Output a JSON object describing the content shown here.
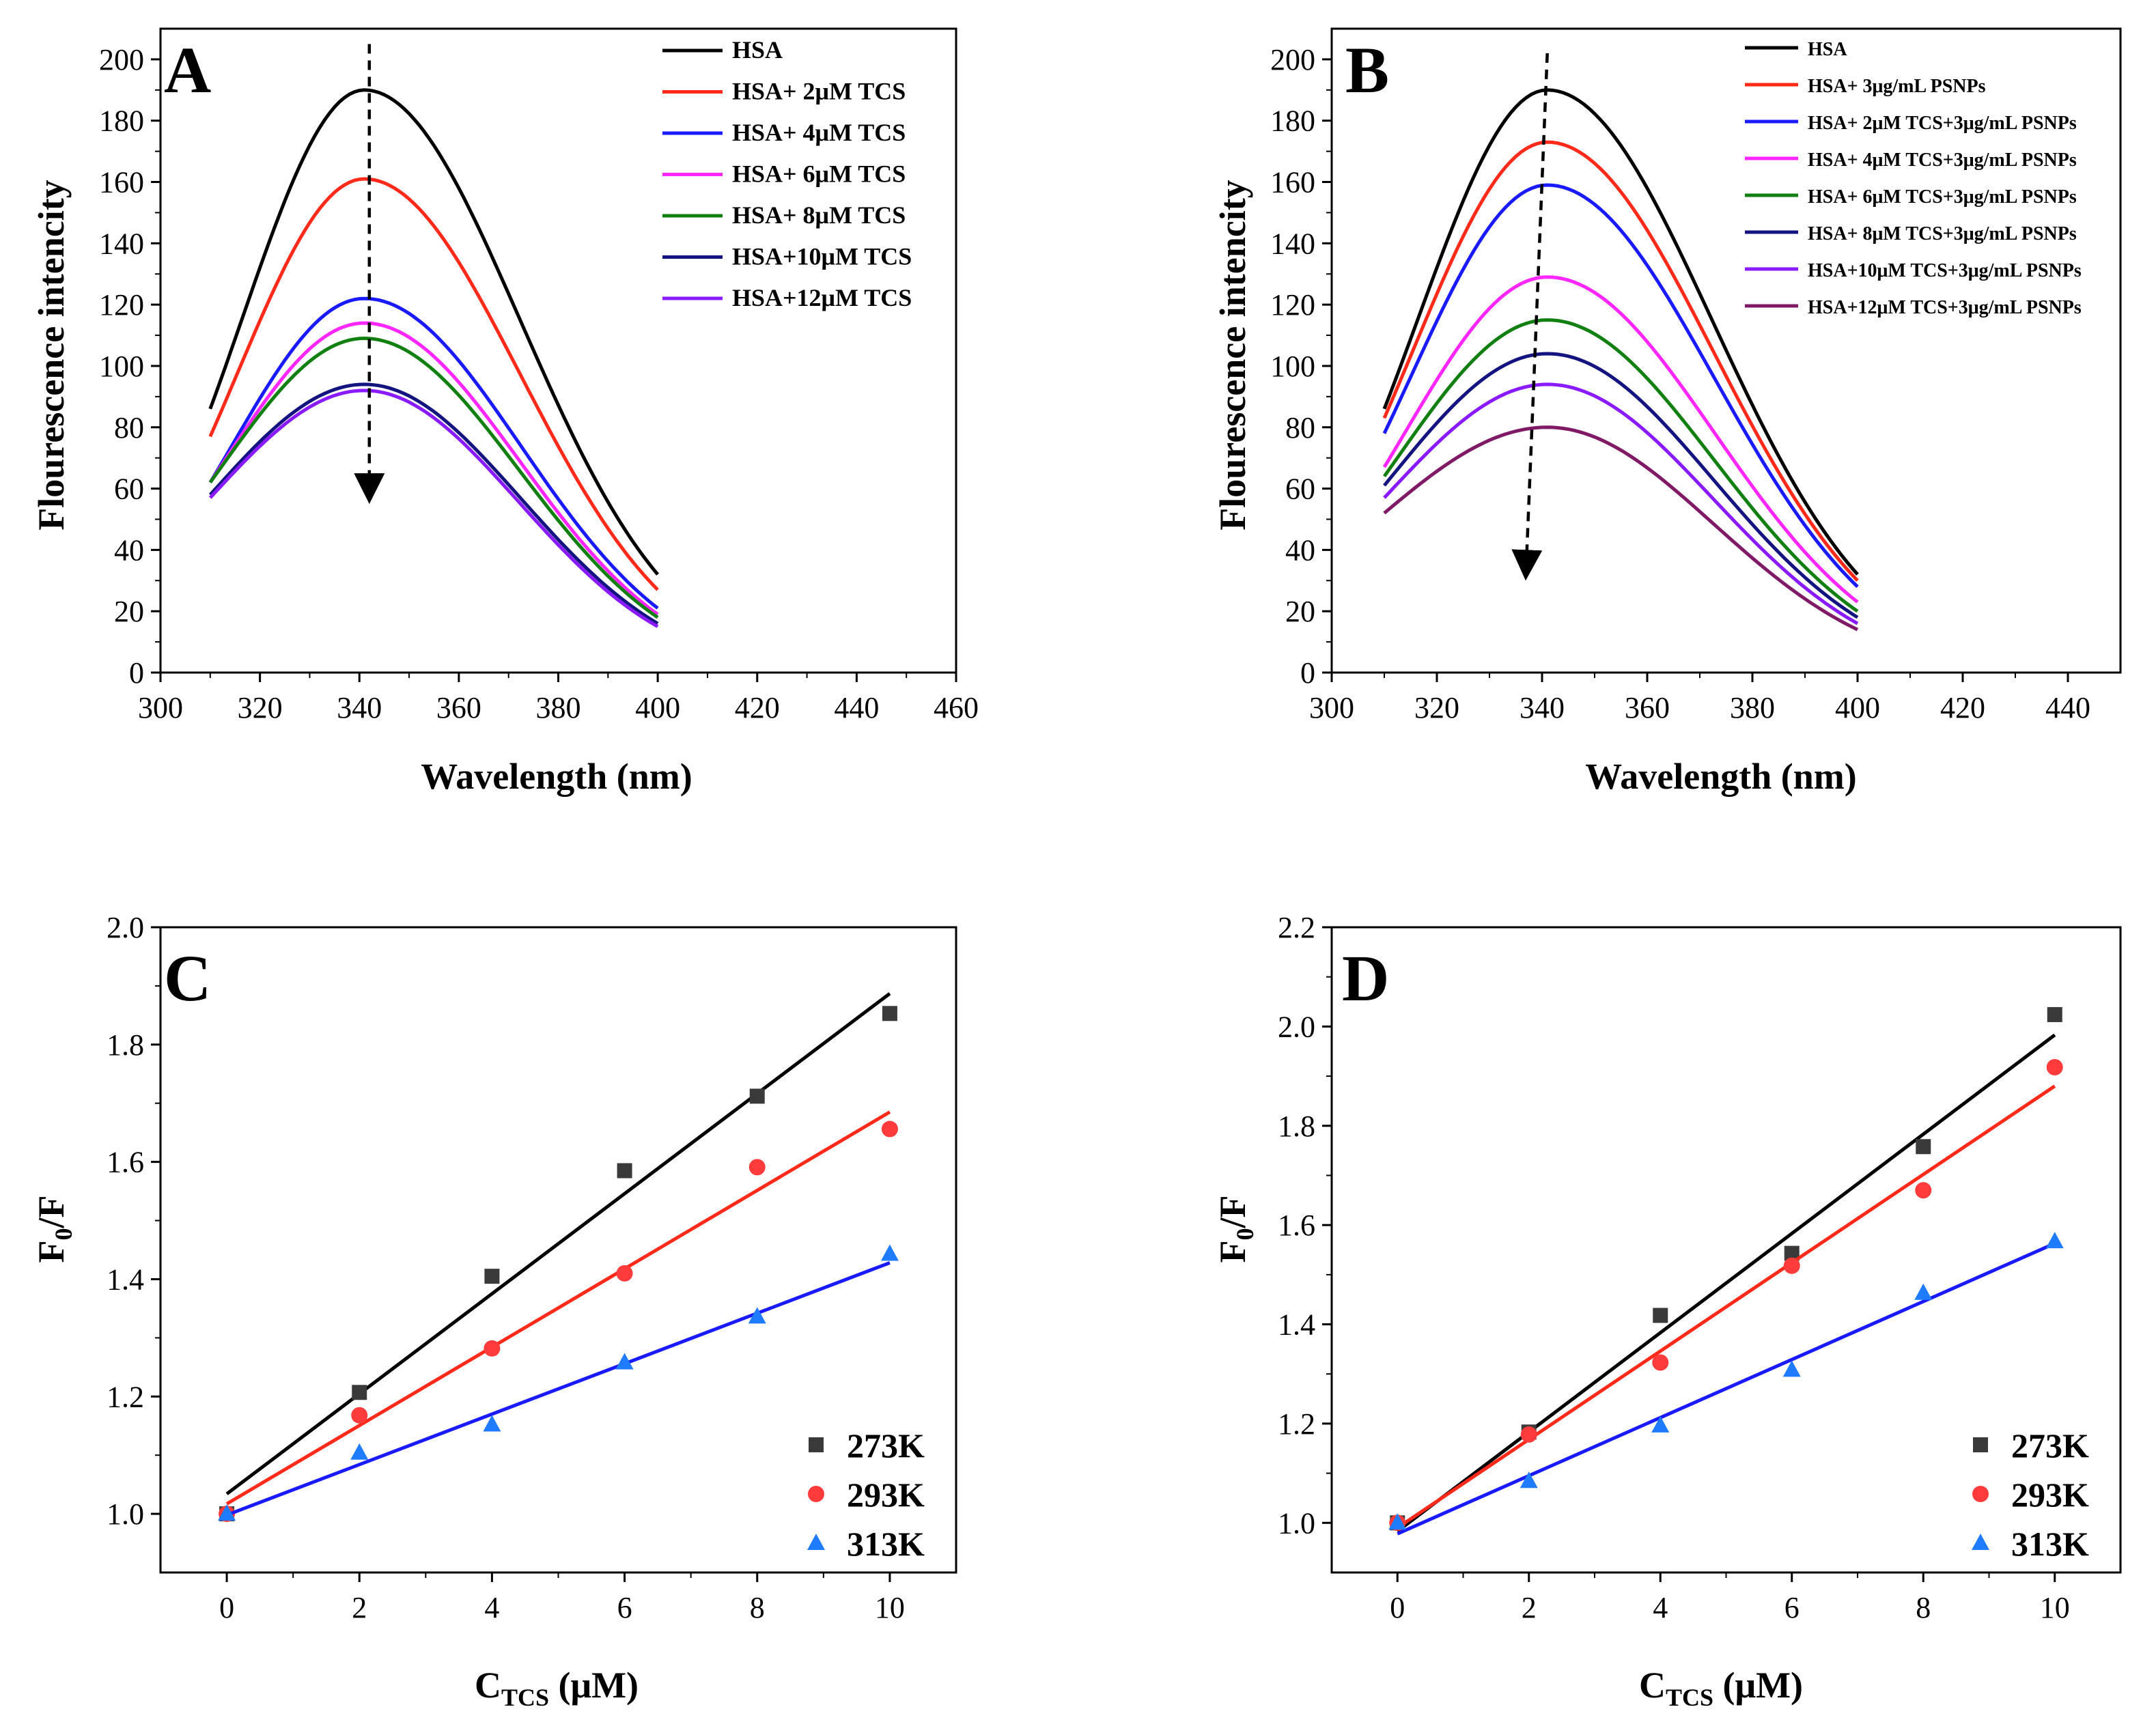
{
  "colors": {
    "black": "#000000",
    "red": "#ff2a1a",
    "blue": "#1a1aff",
    "magenta": "#ff26ff",
    "green": "#118011",
    "navy": "#141480",
    "violet": "#8a1aff",
    "purple": "#801a66",
    "c273": "#3a3a3a",
    "c293": "#ff3b3b",
    "c313": "#1f7bff"
  },
  "chart_data": [
    {
      "id": "A",
      "panel_label": "A",
      "type": "line",
      "xlabel": "Wavelength (nm)",
      "ylabel": "Flourescence intencity",
      "xlim": [
        300,
        460
      ],
      "ylim": [
        0,
        210
      ],
      "xticks": [
        300,
        320,
        340,
        360,
        380,
        400,
        420,
        440,
        460
      ],
      "yticks": [
        0,
        20,
        40,
        60,
        80,
        100,
        120,
        140,
        160,
        180,
        200
      ],
      "x_range": [
        310,
        400
      ],
      "peak_x": 341,
      "arrow": {
        "from": [
          342,
          205
        ],
        "to": [
          342,
          60
        ]
      },
      "series": [
        {
          "name": "HSA",
          "color_key": "black",
          "start": 86,
          "peak": 190,
          "end": 32
        },
        {
          "name": "HSA+  2μM TCS",
          "color_key": "red",
          "start": 77,
          "peak": 161,
          "end": 27
        },
        {
          "name": "HSA+  4μM TCS",
          "color_key": "blue",
          "start": 62,
          "peak": 122,
          "end": 21
        },
        {
          "name": "HSA+  6μM TCS",
          "color_key": "magenta",
          "start": 62,
          "peak": 114,
          "end": 19
        },
        {
          "name": "HSA+  8μM TCS",
          "color_key": "green",
          "start": 62,
          "peak": 109,
          "end": 18
        },
        {
          "name": "HSA+10μM TCS",
          "color_key": "navy",
          "start": 58,
          "peak": 94,
          "end": 16
        },
        {
          "name": "HSA+12μM TCS",
          "color_key": "violet",
          "start": 57,
          "peak": 92,
          "end": 15
        }
      ]
    },
    {
      "id": "B",
      "panel_label": "B",
      "type": "line",
      "xlabel": "Wavelength (nm)",
      "ylabel": "Flourescence intencity",
      "xlim": [
        300,
        450
      ],
      "ylim": [
        0,
        210
      ],
      "xticks": [
        300,
        320,
        340,
        360,
        380,
        400,
        420,
        440
      ],
      "yticks": [
        0,
        20,
        40,
        60,
        80,
        100,
        120,
        140,
        160,
        180,
        200
      ],
      "x_range": [
        310,
        400
      ],
      "peak_x": 341,
      "arrow": {
        "from": [
          341,
          202
        ],
        "to": [
          337,
          35
        ]
      },
      "series": [
        {
          "name": "HSA",
          "color_key": "black",
          "start": 86,
          "peak": 190,
          "end": 32
        },
        {
          "name": "HSA+  3μg/mL PSNPs",
          "color_key": "red",
          "start": 83,
          "peak": 173,
          "end": 30
        },
        {
          "name": "HSA+  2μM TCS+3μg/mL PSNPs",
          "color_key": "blue",
          "start": 78,
          "peak": 159,
          "end": 28
        },
        {
          "name": "HSA+  4μM TCS+3μg/mL PSNPs",
          "color_key": "magenta",
          "start": 67,
          "peak": 129,
          "end": 23
        },
        {
          "name": "HSA+  6μM TCS+3μg/mL PSNPs",
          "color_key": "green",
          "start": 64,
          "peak": 115,
          "end": 20
        },
        {
          "name": "HSA+  8μM TCS+3μg/mL PSNPs",
          "color_key": "navy",
          "start": 61,
          "peak": 104,
          "end": 18
        },
        {
          "name": "HSA+10μM TCS+3μg/mL PSNPs",
          "color_key": "violet",
          "start": 57,
          "peak": 94,
          "end": 16
        },
        {
          "name": "HSA+12μM TCS+3μg/mL PSNPs",
          "color_key": "purple",
          "start": 52,
          "peak": 80,
          "end": 14
        }
      ]
    },
    {
      "id": "C",
      "panel_label": "C",
      "type": "scatter",
      "xlabel_main": "C",
      "xlabel_sub": "TCS",
      "xlabel_unit": " (μM)",
      "ylabel_main": "F",
      "ylabel_sub": "0",
      "ylabel_rest": "/F",
      "xlim": [
        -1,
        11
      ],
      "ylim": [
        0.9,
        2.0
      ],
      "xticks": [
        0,
        2,
        4,
        6,
        8,
        10
      ],
      "yticks": [
        1.0,
        1.2,
        1.4,
        1.6,
        1.8,
        2.0
      ],
      "x": [
        0,
        2,
        4,
        6,
        8,
        10
      ],
      "series": [
        {
          "name": "273K",
          "marker": "square",
          "color_key": "c273",
          "line_color_key": "black",
          "values": [
            1.0,
            1.207,
            1.405,
            1.585,
            1.712,
            1.853
          ],
          "fit": {
            "intercept": 1.034,
            "slope": 0.0853
          }
        },
        {
          "name": "293K",
          "marker": "circle",
          "color_key": "c293",
          "line_color_key": "red",
          "values": [
            1.0,
            1.168,
            1.282,
            1.41,
            1.591,
            1.656
          ],
          "fit": {
            "intercept": 1.017,
            "slope": 0.0668
          }
        },
        {
          "name": "313K",
          "marker": "triangle",
          "color_key": "c313",
          "line_color_key": "blue",
          "values": [
            1.0,
            1.104,
            1.152,
            1.258,
            1.336,
            1.443
          ],
          "fit": {
            "intercept": 0.998,
            "slope": 0.043
          }
        }
      ]
    },
    {
      "id": "D",
      "panel_label": "D",
      "type": "scatter",
      "xlabel_main": "C",
      "xlabel_sub": "TCS",
      "xlabel_unit": " (μM)",
      "ylabel_main": "F",
      "ylabel_sub": "0",
      "ylabel_rest": "/F",
      "xlim": [
        -1,
        11
      ],
      "ylim": [
        0.9,
        2.2
      ],
      "xticks": [
        0,
        2,
        4,
        6,
        8,
        10
      ],
      "yticks": [
        1.0,
        1.2,
        1.4,
        1.6,
        1.8,
        2.0,
        2.2
      ],
      "x": [
        0,
        2,
        4,
        6,
        8,
        10
      ],
      "series": [
        {
          "name": "273K",
          "marker": "square",
          "color_key": "c273",
          "line_color_key": "black",
          "values": [
            1.0,
            1.183,
            1.418,
            1.543,
            1.758,
            2.024
          ],
          "fit": {
            "intercept": 0.983,
            "slope": 0.1
          }
        },
        {
          "name": "293K",
          "marker": "circle",
          "color_key": "c293",
          "line_color_key": "red",
          "values": [
            1.0,
            1.178,
            1.323,
            1.518,
            1.67,
            1.918
          ],
          "fit": {
            "intercept": 0.99,
            "slope": 0.089
          }
        },
        {
          "name": "313K",
          "marker": "triangle",
          "color_key": "c313",
          "line_color_key": "blue",
          "values": [
            1.0,
            1.084,
            1.196,
            1.308,
            1.463,
            1.567
          ],
          "fit": {
            "intercept": 0.978,
            "slope": 0.0585
          }
        }
      ]
    }
  ]
}
